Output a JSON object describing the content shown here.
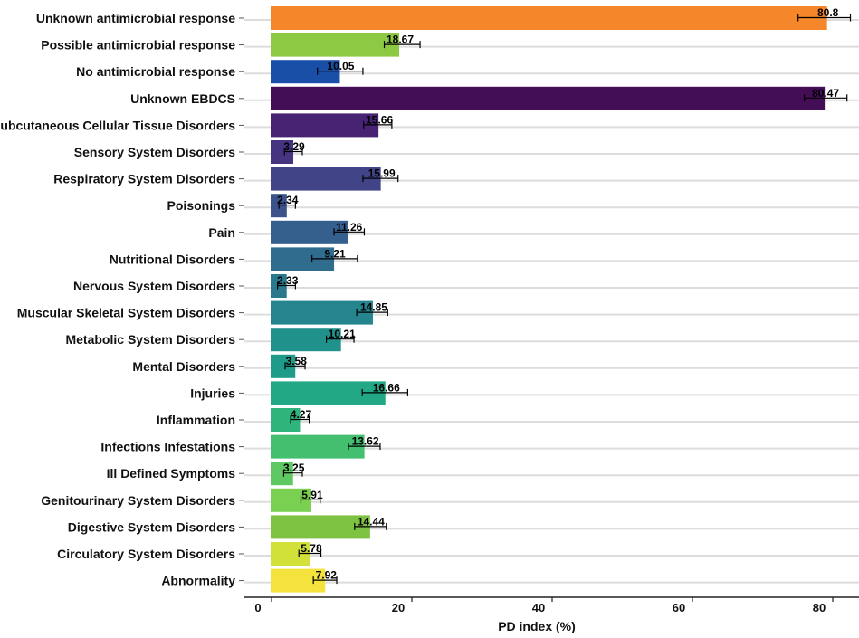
{
  "chart_data": {
    "type": "bar",
    "orientation": "horizontal",
    "xlabel": "PD index (%)",
    "ylabel": "",
    "xlim": [
      0,
      84
    ],
    "xticks": [
      {
        "value": 0,
        "label": "0"
      },
      {
        "value": 20,
        "label": "20"
      },
      {
        "value": 40,
        "label": "40"
      },
      {
        "value": 60,
        "label": "60"
      },
      {
        "value": 80,
        "label": "80"
      }
    ],
    "grid": "horizontal",
    "bars": [
      {
        "category": "Unknown antimicrobial response",
        "value": 80.8,
        "label": "80.8",
        "err_low": 76.6,
        "err_high": 84.2,
        "color": "#F5862A"
      },
      {
        "category": "Possible antimicrobial response",
        "value": 18.67,
        "label": "18.67",
        "err_low": 16.5,
        "err_high": 21.7,
        "color": "#8DC943"
      },
      {
        "category": "No antimicrobial response",
        "value": 10.05,
        "label": "10.05",
        "err_low": 6.8,
        "err_high": 13.4,
        "color": "#1A4FA8"
      },
      {
        "category": "Unknown EBDCS",
        "value": 80.47,
        "label": "80.47",
        "err_low": 77.5,
        "err_high": 83.7,
        "color": "#440E57"
      },
      {
        "category": "Subcutaneous Cellular Tissue Disorders",
        "value": 15.66,
        "label": "15.66",
        "err_low": 13.5,
        "err_high": 17.6,
        "color": "#482273"
      },
      {
        "category": "Sensory System Disorders",
        "value": 3.29,
        "label": "3.29",
        "err_low": 2.0,
        "err_high": 4.6,
        "color": "#463480"
      },
      {
        "category": "Respiratory System Disorders",
        "value": 15.99,
        "label": "15.99",
        "err_low": 13.4,
        "err_high": 18.5,
        "color": "#414487"
      },
      {
        "category": "Poisonings",
        "value": 2.34,
        "label": "2.34",
        "err_low": 1.2,
        "err_high": 3.6,
        "color": "#3B528B"
      },
      {
        "category": "Pain",
        "value": 11.26,
        "label": "11.26",
        "err_low": 9.2,
        "err_high": 13.6,
        "color": "#355F8D"
      },
      {
        "category": "Nutritional Disorders",
        "value": 9.21,
        "label": "9.21",
        "err_low": 6.0,
        "err_high": 12.6,
        "color": "#2F6C8E"
      },
      {
        "category": "Nervous System Disorders",
        "value": 2.33,
        "label": "2.33",
        "err_low": 1.0,
        "err_high": 3.6,
        "color": "#2A788E"
      },
      {
        "category": "Muscular Skeletal System Disorders",
        "value": 14.85,
        "label": "14.85",
        "err_low": 12.5,
        "err_high": 17.0,
        "color": "#25848E"
      },
      {
        "category": "Metabolic System Disorders",
        "value": 10.21,
        "label": "10.21",
        "err_low": 8.1,
        "err_high": 12.1,
        "color": "#21918C"
      },
      {
        "category": "Mental Disorders",
        "value": 3.58,
        "label": "3.58",
        "err_low": 2.1,
        "err_high": 5.0,
        "color": "#1E9C89"
      },
      {
        "category": "Injuries",
        "value": 16.66,
        "label": "16.66",
        "err_low": 13.3,
        "err_high": 19.9,
        "color": "#22A884"
      },
      {
        "category": "Inflammation",
        "value": 4.27,
        "label": "4.27",
        "err_low": 2.9,
        "err_high": 5.6,
        "color": "#2FB47C"
      },
      {
        "category": "Infections Infestations",
        "value": 13.62,
        "label": "13.62",
        "err_low": 11.3,
        "err_high": 15.9,
        "color": "#44BF70"
      },
      {
        "category": "Ill Defined Symptoms",
        "value": 3.25,
        "label": "3.25",
        "err_low": 1.9,
        "err_high": 4.6,
        "color": "#5EC962"
      },
      {
        "category": "Genitourinary System Disorders",
        "value": 5.91,
        "label": "5.91",
        "err_low": 4.4,
        "err_high": 7.2,
        "color": "#7AD151"
      },
      {
        "category": "Digestive System Disorders",
        "value": 14.44,
        "label": "14.44",
        "err_low": 12.2,
        "err_high": 16.8,
        "color": "#7EC242"
      },
      {
        "category": "Circulatory System Disorders",
        "value": 5.78,
        "label": "5.78",
        "err_low": 4.1,
        "err_high": 7.3,
        "color": "#D2E13A"
      },
      {
        "category": "Abnormality",
        "value": 7.92,
        "label": "7.92",
        "err_low": 6.2,
        "err_high": 9.6,
        "color": "#F4E33C"
      }
    ]
  }
}
